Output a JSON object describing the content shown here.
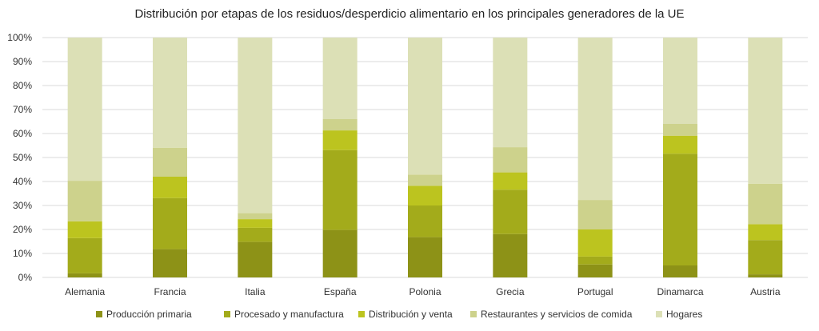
{
  "chart_data": {
    "type": "bar",
    "stacked": true,
    "percent": true,
    "title": "Distribución por etapas de los residuos/desperdicio alimentario en los principales  generadores de la  UE",
    "xlabel": "",
    "ylabel": "",
    "ylim": [
      0,
      100
    ],
    "y_ticks": [
      "0%",
      "10%",
      "20%",
      "30%",
      "40%",
      "50%",
      "60%",
      "70%",
      "80%",
      "90%",
      "100%"
    ],
    "grid": true,
    "legend_position": "bottom",
    "categories": [
      "Alemania",
      "Francia",
      "Italia",
      "España",
      "Polonia",
      "Grecia",
      "Portugal",
      "Dinamarca",
      "Austria"
    ],
    "series": [
      {
        "name": "Producción primaria",
        "color": "#8D9217",
        "values": [
          1.7,
          11.8,
          14.8,
          19.8,
          16.8,
          18.1,
          5.4,
          5.0,
          1.3
        ]
      },
      {
        "name": "Procesado y manufactura",
        "color": "#A3AB1B",
        "values": [
          14.7,
          21.3,
          5.9,
          33.3,
          13.2,
          18.5,
          3.3,
          46.6,
          14.3
        ]
      },
      {
        "name": "Distribución y venta",
        "color": "#BCC41F",
        "values": [
          7.0,
          8.9,
          3.6,
          8.2,
          8.2,
          7.2,
          11.3,
          7.5,
          6.6
        ]
      },
      {
        "name": "Restaurantes y servicios de comida",
        "color": "#CDD28C",
        "values": [
          16.9,
          12.1,
          2.5,
          4.7,
          4.7,
          10.5,
          12.3,
          4.9,
          16.9
        ]
      },
      {
        "name": "Hogares",
        "color": "#DCE0B6",
        "values": [
          59.7,
          45.9,
          73.2,
          34.0,
          57.1,
          45.7,
          67.7,
          36.0,
          60.9
        ]
      }
    ]
  },
  "colors": {
    "grid": "#D9D9D9",
    "text": "#333333"
  }
}
